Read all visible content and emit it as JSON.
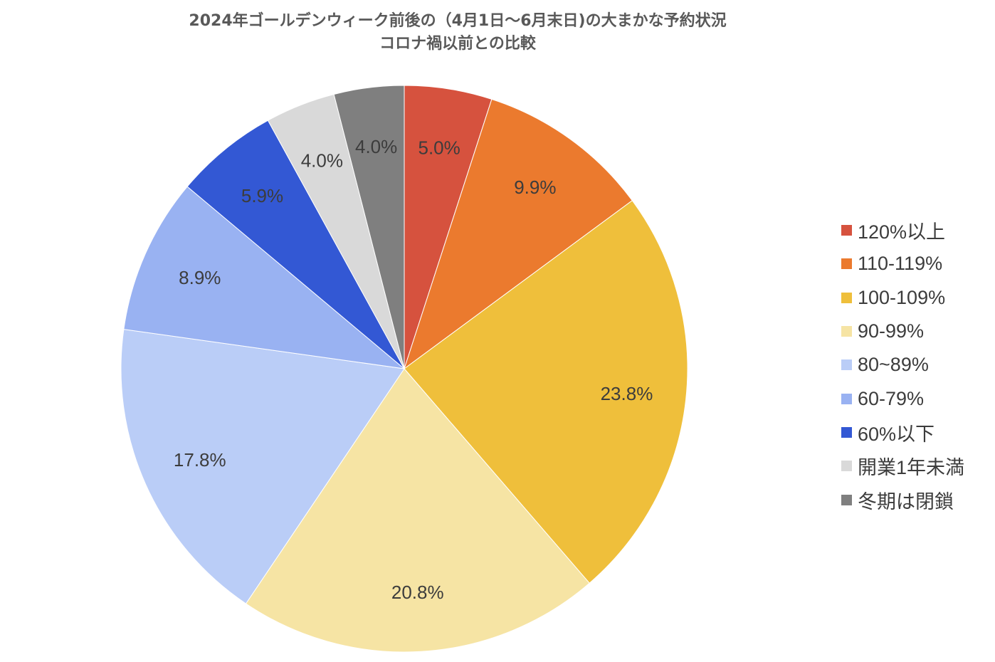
{
  "chart_data": {
    "type": "pie",
    "title": "2024年ゴールデンウィーク前後の（4月1日〜6月末日)の大まかな予約状況",
    "subtitle": "コロナ禍以前との比較",
    "categories": [
      "120%以上",
      "110-119%",
      "100-109%",
      "90-99%",
      "80~89%",
      "60-79%",
      "60%以下",
      "開業1年未満",
      "冬期は閉鎖"
    ],
    "values": [
      5.0,
      9.9,
      23.8,
      20.8,
      17.8,
      8.9,
      5.9,
      4.0,
      4.0
    ],
    "value_labels": [
      "5.0%",
      "9.9%",
      "23.8%",
      "20.8%",
      "17.8%",
      "8.9%",
      "5.9%",
      "4.0%",
      "4.0%"
    ],
    "colors": [
      "#d6523e",
      "#eb7a2e",
      "#efbf3b",
      "#f6e4a4",
      "#bacdf7",
      "#99b2f2",
      "#3358d4",
      "#d9d9d9",
      "#7f7f7f"
    ],
    "legend_position": "right",
    "start_angle": "12 o'clock",
    "direction": "clockwise"
  }
}
